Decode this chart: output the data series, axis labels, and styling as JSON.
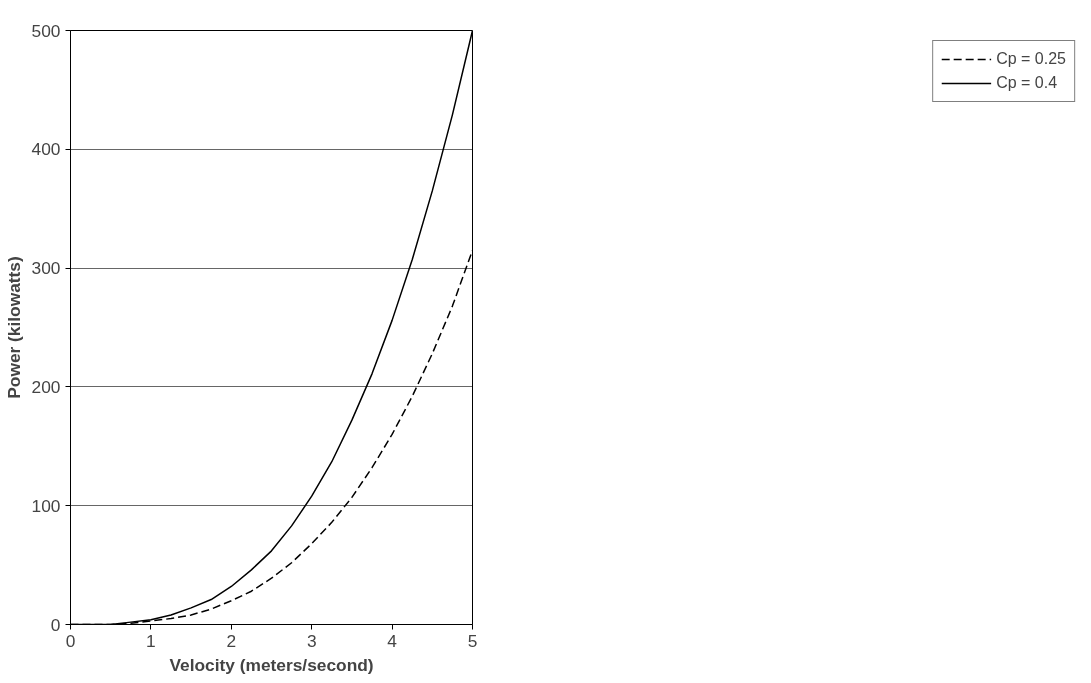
{
  "chart_data": {
    "type": "line",
    "xlabel": "Velocity (meters/second)",
    "ylabel": "Power (kilowatts)",
    "xlim": [
      0,
      5
    ],
    "xticks": [
      0,
      1,
      2,
      3,
      4,
      5
    ],
    "ylim": [
      0,
      500
    ],
    "yticks": [
      0,
      100,
      200,
      300,
      400,
      500
    ],
    "grid": "y",
    "legend": "right",
    "marker": "none",
    "series": [
      {
        "name": "Cp = 0.25",
        "color": "#000000",
        "line_style": "dashed",
        "x": [
          0,
          0.25,
          0.5,
          0.75,
          1,
          1.25,
          1.5,
          1.75,
          2,
          2.25,
          2.5,
          2.75,
          3,
          3.25,
          3.5,
          3.75,
          4,
          4.25,
          4.5,
          4.75,
          5
        ],
        "values": [
          0,
          0,
          0,
          1,
          3,
          5,
          8,
          13,
          20,
          28,
          39,
          52,
          68,
          86,
          107,
          132,
          160,
          192,
          228,
          268,
          315
        ]
      },
      {
        "name": "Cp = 0.4",
        "color": "#000000",
        "line_style": "solid",
        "x": [
          0,
          0.25,
          0.5,
          0.75,
          1,
          1.25,
          1.5,
          1.75,
          2,
          2.25,
          2.5,
          2.75,
          3,
          3.25,
          3.5,
          3.75,
          4,
          4.25,
          4.5,
          4.75,
          5
        ],
        "values": [
          0,
          0,
          0,
          2,
          4,
          8,
          14,
          21,
          32,
          46,
          62,
          83,
          108,
          137,
          172,
          211,
          256,
          307,
          365,
          429,
          500
        ]
      }
    ]
  }
}
